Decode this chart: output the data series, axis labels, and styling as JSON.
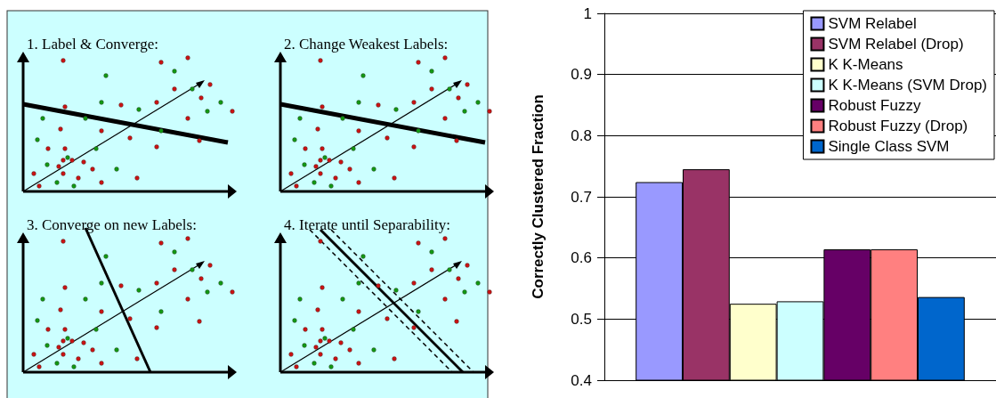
{
  "chart_data": [
    {
      "type": "other",
      "annotations": [
        "1. Label & Converge:",
        "2. Change Weakest Labels:",
        "3. Converge on new Labels:",
        "4. Iterate until Separability:"
      ]
    },
    {
      "type": "bar",
      "ylabel": "Correctly Clustered Fraction",
      "categories": [
        null
      ],
      "series": [
        {
          "name": "SVM Relabel",
          "color": "#9999ff",
          "values": [
            0.724
          ]
        },
        {
          "name": "SVM Relabel (Drop)",
          "color": "#993366",
          "values": [
            0.745
          ]
        },
        {
          "name": "K K-Means",
          "color": "#ffffcc",
          "values": [
            0.525
          ]
        },
        {
          "name": "K K-Means (SVM Drop)",
          "color": "#ccffff",
          "values": [
            0.529
          ]
        },
        {
          "name": "Robust Fuzzy",
          "color": "#660066",
          "values": [
            0.614
          ]
        },
        {
          "name": "Robust Fuzzy (Drop)",
          "color": "#ff8080",
          "values": [
            0.614
          ]
        },
        {
          "name": "Single Class SVM",
          "color": "#0066cc",
          "values": [
            0.536
          ]
        }
      ],
      "ylim": [
        0.4,
        1
      ],
      "yticks": [
        0.4,
        0.5,
        0.6,
        0.7,
        0.8,
        0.9,
        1
      ],
      "grid": "y",
      "legend": "top right"
    }
  ]
}
